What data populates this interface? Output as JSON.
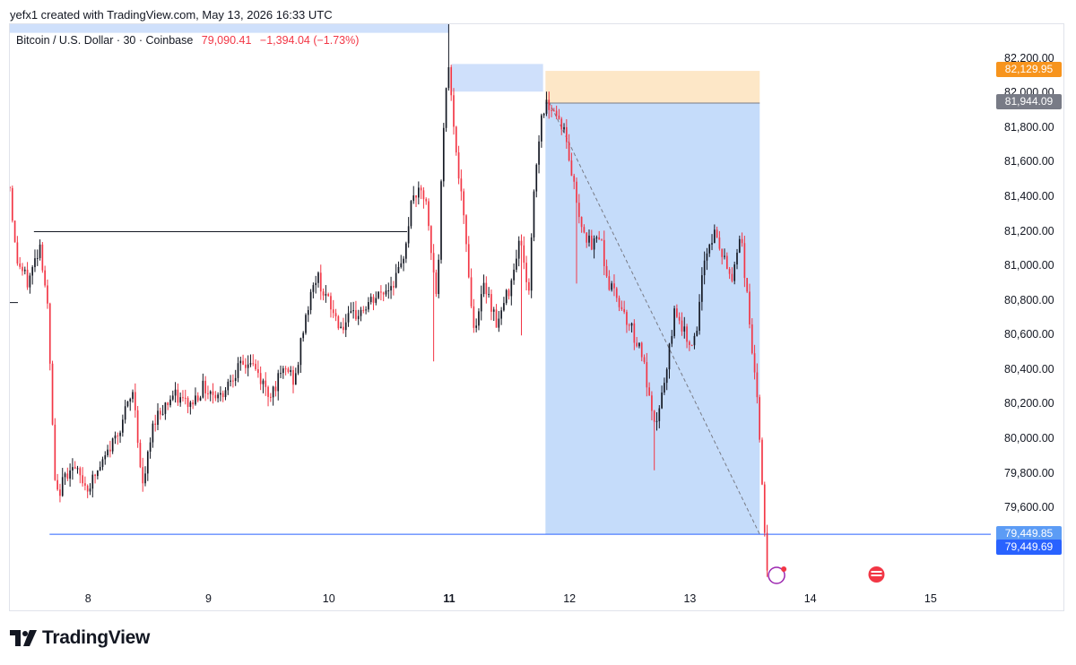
{
  "header": {
    "attribution": "yefx1 created with TradingView.com, May 13, 2026 16:33 UTC"
  },
  "legend": {
    "symbol": "Bitcoin / U.S. Dollar · 30 · Coinbase",
    "last": "79,090.41",
    "change": "−1,394.04 (−1.73%)"
  },
  "price_tags": {
    "target": {
      "label": "82,129.95",
      "value": 82129.95,
      "color": "#f7941d"
    },
    "entry": {
      "label": "81,944.09",
      "value": 81944.09,
      "color": "#787b86"
    },
    "level_a": {
      "label": "79,449.85",
      "value": 79449.85,
      "color": "#5c9cf5"
    },
    "level_b": {
      "label": "79,449.69",
      "value": 79449.69,
      "color": "#2962ff"
    }
  },
  "brand": {
    "name": "TradingView"
  },
  "colors": {
    "up": "#131722",
    "down": "#f23645",
    "projection_fill": "#c5dcfa",
    "stop_fill": "#fde7c7",
    "level_line": "#2962ff"
  },
  "chart_data": {
    "type": "candlestick",
    "y_range": [
      79150,
      82400
    ],
    "x_range": [
      7.35,
      15.5
    ],
    "price_ticks": [
      {
        "label": "82,200.00",
        "value": 82200
      },
      {
        "label": "82,000.00",
        "value": 82000
      },
      {
        "label": "81,800.00",
        "value": 81800
      },
      {
        "label": "81,600.00",
        "value": 81600
      },
      {
        "label": "81,400.00",
        "value": 81400
      },
      {
        "label": "81,200.00",
        "value": 81200
      },
      {
        "label": "81,000.00",
        "value": 81000
      },
      {
        "label": "80,800.00",
        "value": 80800
      },
      {
        "label": "80,600.00",
        "value": 80600
      },
      {
        "label": "80,400.00",
        "value": 80400
      },
      {
        "label": "80,200.00",
        "value": 80200
      },
      {
        "label": "80,000.00",
        "value": 80000
      },
      {
        "label": "79,800.00",
        "value": 79800
      },
      {
        "label": "79,600.00",
        "value": 79600
      }
    ],
    "time_ticks": [
      {
        "label": "8",
        "value": 8,
        "bold": false
      },
      {
        "label": "9",
        "value": 9,
        "bold": false
      },
      {
        "label": "10",
        "value": 10,
        "bold": false
      },
      {
        "label": "11",
        "value": 11,
        "bold": true
      },
      {
        "label": "12",
        "value": 12,
        "bold": false
      },
      {
        "label": "13",
        "value": 13,
        "bold": false
      },
      {
        "label": "14",
        "value": 14,
        "bold": false
      },
      {
        "label": "15",
        "value": 15,
        "bold": false
      }
    ],
    "anchor_points": [
      [
        7.35,
        81460
      ],
      [
        7.4,
        81050
      ],
      [
        7.5,
        80900
      ],
      [
        7.6,
        81130
      ],
      [
        7.66,
        80800
      ],
      [
        7.73,
        79650
      ],
      [
        7.85,
        79850
      ],
      [
        8.0,
        79720
      ],
      [
        8.12,
        79860
      ],
      [
        8.25,
        80050
      ],
      [
        8.38,
        80280
      ],
      [
        8.45,
        79700
      ],
      [
        8.55,
        80120
      ],
      [
        8.7,
        80250
      ],
      [
        8.85,
        80200
      ],
      [
        8.95,
        80300
      ],
      [
        9.1,
        80250
      ],
      [
        9.2,
        80380
      ],
      [
        9.35,
        80450
      ],
      [
        9.5,
        80260
      ],
      [
        9.65,
        80410
      ],
      [
        9.72,
        80330
      ],
      [
        9.8,
        80700
      ],
      [
        9.9,
        80950
      ],
      [
        10.0,
        80780
      ],
      [
        10.1,
        80650
      ],
      [
        10.3,
        80760
      ],
      [
        10.5,
        80880
      ],
      [
        10.6,
        80980
      ],
      [
        10.7,
        81420
      ],
      [
        10.8,
        81400
      ],
      [
        10.86,
        81000
      ],
      [
        10.9,
        80800
      ],
      [
        10.95,
        81800
      ],
      [
        11.0,
        82200
      ],
      [
        11.05,
        81700
      ],
      [
        11.15,
        81080
      ],
      [
        11.2,
        80630
      ],
      [
        11.3,
        80900
      ],
      [
        11.4,
        80660
      ],
      [
        11.5,
        80880
      ],
      [
        11.58,
        81150
      ],
      [
        11.62,
        81050
      ],
      [
        11.66,
        80800
      ],
      [
        11.7,
        81420
      ],
      [
        11.77,
        81900
      ],
      [
        11.84,
        81950
      ],
      [
        11.95,
        81800
      ],
      [
        12.08,
        81300
      ],
      [
        12.18,
        81100
      ],
      [
        12.25,
        81200
      ],
      [
        12.32,
        80900
      ],
      [
        12.4,
        80820
      ],
      [
        12.5,
        80660
      ],
      [
        12.6,
        80500
      ],
      [
        12.7,
        80050
      ],
      [
        12.8,
        80350
      ],
      [
        12.88,
        80780
      ],
      [
        12.95,
        80610
      ],
      [
        13.05,
        80550
      ],
      [
        13.12,
        81050
      ],
      [
        13.2,
        81200
      ],
      [
        13.3,
        81000
      ],
      [
        13.35,
        80930
      ],
      [
        13.42,
        81210
      ],
      [
        13.5,
        80640
      ],
      [
        13.55,
        80300
      ],
      [
        13.6,
        79750
      ],
      [
        13.65,
        79090
      ]
    ],
    "horizontal_levels": [
      {
        "value": 81200,
        "x_start": 7.55,
        "x_end": 10.65,
        "color": "#131722"
      },
      {
        "value": 79449.85,
        "x_start": 7.68,
        "x_end": 15.5,
        "color": "#2962ff"
      }
    ],
    "zones": [
      {
        "name": "stop",
        "y_top": 82129.95,
        "y_bottom": 81944.09,
        "x_start": 11.8,
        "x_end": 13.58,
        "color": "#fde7c7"
      },
      {
        "name": "target",
        "y_top": 81944.09,
        "y_bottom": 79449.69,
        "x_start": 11.8,
        "x_end": 13.58,
        "color": "#c5dcfa"
      },
      {
        "name": "box_a",
        "y_top": 82490,
        "y_bottom": 82350,
        "x_start": 7.35,
        "x_end": 11.0,
        "color": "#cfe0fb"
      },
      {
        "name": "box_b",
        "y_top": 82170,
        "y_bottom": 82010,
        "x_start": 11.02,
        "x_end": 11.78,
        "color": "#cfe0fb"
      }
    ],
    "trend_line": {
      "start": [
        11.83,
        81950
      ],
      "end": [
        13.58,
        79450
      ]
    }
  }
}
